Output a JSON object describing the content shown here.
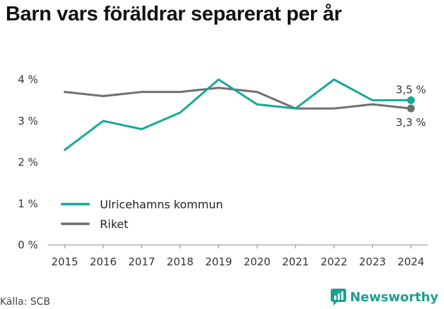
{
  "title": "Barn vars föräldrar separerat per år",
  "source": "Källa: SCB",
  "brand": "Newsworthy",
  "colors": {
    "ulricehamn": "#16a89a",
    "riket": "#6f6f72",
    "brand": "#1e9e91",
    "axis": "#888888"
  },
  "chart_data": {
    "type": "line",
    "x": [
      2015,
      2016,
      2017,
      2018,
      2019,
      2020,
      2021,
      2022,
      2023,
      2024
    ],
    "series": [
      {
        "name": "Ulricehamns kommun",
        "values": [
          2.3,
          3.0,
          2.8,
          3.2,
          4.0,
          3.4,
          3.3,
          4.0,
          3.5,
          3.5
        ],
        "end_label": "3,5 %"
      },
      {
        "name": "Riket",
        "values": [
          3.7,
          3.6,
          3.7,
          3.7,
          3.8,
          3.7,
          3.3,
          3.3,
          3.4,
          3.3
        ],
        "end_label": "3,3 %"
      }
    ],
    "yticks": [
      "0 %",
      "1 %",
      "2 %",
      "3 %",
      "4 %"
    ],
    "ylim": [
      0,
      4
    ],
    "legend": "bottom-left",
    "grid": false
  }
}
